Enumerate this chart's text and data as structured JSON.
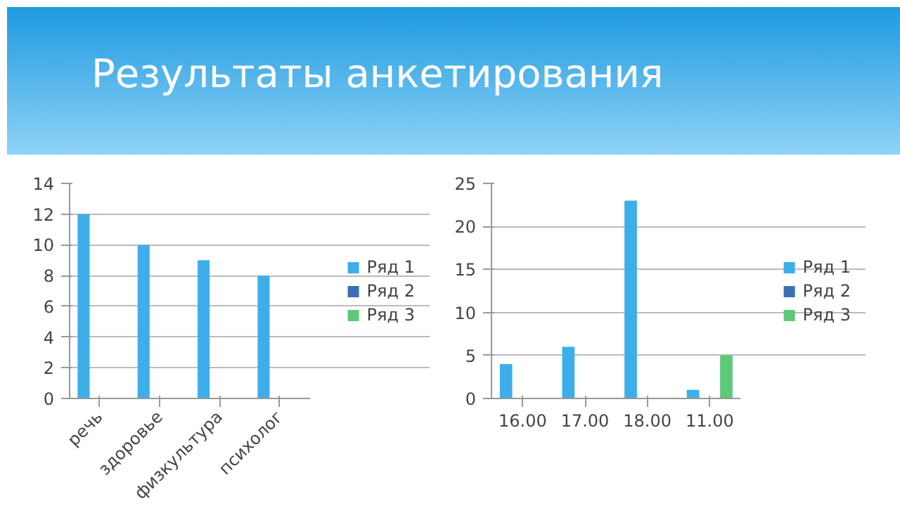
{
  "chart_data": [
    {
      "type": "bar",
      "title": "Результаты анкетирования",
      "categories": [
        "речь",
        "здоровье",
        "физкультура",
        "психолог"
      ],
      "ylim": [
        0,
        14
      ],
      "yticks": [
        0,
        2,
        4,
        6,
        8,
        10,
        12,
        14
      ],
      "grid": "y",
      "legend": "right",
      "series": [
        {
          "name": "Ряд 1",
          "color": "#3daee9",
          "values": [
            12,
            10,
            9,
            8
          ]
        },
        {
          "name": "Ряд 2",
          "color": "#3a6fb5",
          "values": [
            null,
            null,
            null,
            null
          ]
        },
        {
          "name": "Ряд 3",
          "color": "#5dc878",
          "values": [
            null,
            null,
            null,
            null
          ]
        }
      ]
    },
    {
      "type": "bar",
      "categories": [
        "16.00",
        "17.00",
        "18.00",
        "11.00"
      ],
      "ylim": [
        0,
        25
      ],
      "yticks": [
        0,
        5,
        10,
        15,
        20,
        25
      ],
      "grid": "y",
      "legend": "right",
      "series": [
        {
          "name": "Ряд 1",
          "color": "#3daee9",
          "values": [
            4,
            6,
            23,
            1
          ]
        },
        {
          "name": "Ряд 2",
          "color": "#3a6fb5",
          "values": [
            null,
            null,
            null,
            null
          ]
        },
        {
          "name": "Ряд 3",
          "color": "#5dc878",
          "values": [
            null,
            null,
            null,
            5
          ]
        }
      ]
    }
  ]
}
